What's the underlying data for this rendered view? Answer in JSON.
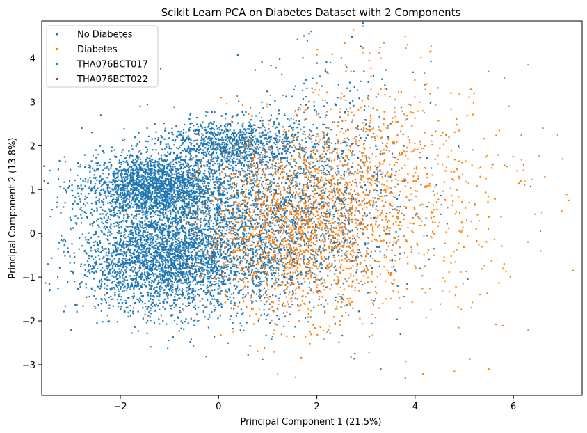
{
  "chart_data": {
    "type": "scatter",
    "title": "Scikit Learn PCA on Diabetes Dataset with 2 Components",
    "xlabel": "Principal Component 1 (21.5%)",
    "ylabel": "Principal Component 2 (13.8%)",
    "xlim": [
      -3.6,
      7.4
    ],
    "ylim": [
      -3.7,
      4.85
    ],
    "xticks": [
      -2,
      0,
      2,
      4,
      6
    ],
    "yticks": [
      -3,
      -2,
      -1,
      0,
      1,
      2,
      3,
      4
    ],
    "grid": false,
    "legend_position": "upper-left",
    "series": [
      {
        "name": "No Diabetes",
        "color": "#1f77b4",
        "clusters": [
          {
            "x_mean": -1.3,
            "x_sd": 0.75,
            "y_mean": 1.05,
            "y_sd": 0.38,
            "count": 2200
          },
          {
            "x_mean": -1.1,
            "x_sd": 0.85,
            "y_mean": -0.6,
            "y_sd": 0.6,
            "count": 2800
          },
          {
            "x_mean": 0.2,
            "x_sd": 0.7,
            "y_mean": 2.05,
            "y_sd": 0.28,
            "count": 900
          },
          {
            "x_mean": 0.8,
            "x_sd": 1.0,
            "y_mean": 0.2,
            "y_sd": 1.0,
            "count": 1800
          },
          {
            "x_mean": 2.2,
            "x_sd": 0.9,
            "y_mean": 1.2,
            "y_sd": 1.3,
            "count": 700
          }
        ],
        "notable_points": [
          {
            "x": -3.2,
            "y": -0.05
          },
          {
            "x": -2.4,
            "y": 2.7
          },
          {
            "x": -1.6,
            "y": 2.9
          },
          {
            "x": 2.5,
            "y": 4.0
          },
          {
            "x": 3.3,
            "y": -3.1
          },
          {
            "x": 6.35,
            "y": 1.07
          },
          {
            "x": 4.2,
            "y": 3.4
          },
          {
            "x": 3.7,
            "y": -2.3
          }
        ]
      },
      {
        "name": "Diabetes",
        "color": "#ff7f0e",
        "clusters": [
          {
            "x_mean": 1.5,
            "x_sd": 0.9,
            "y_mean": 0.1,
            "y_sd": 1.0,
            "count": 1500
          },
          {
            "x_mean": 3.0,
            "x_sd": 0.9,
            "y_mean": 1.0,
            "y_sd": 1.3,
            "count": 700
          },
          {
            "x_mean": 4.5,
            "x_sd": 1.0,
            "y_mean": 0.9,
            "y_sd": 1.5,
            "count": 250
          }
        ],
        "notable_points": [
          {
            "x": 3.8,
            "y": 4.5
          },
          {
            "x": 4.3,
            "y": 4.15
          },
          {
            "x": 7.0,
            "y": 1.7
          },
          {
            "x": 6.9,
            "y": 2.25
          },
          {
            "x": 6.6,
            "y": 2.4
          },
          {
            "x": 6.3,
            "y": 3.85
          },
          {
            "x": 3.8,
            "y": -3.3
          },
          {
            "x": 4.8,
            "y": -3.15
          },
          {
            "x": 5.5,
            "y": -3.1
          },
          {
            "x": 6.3,
            "y": -2.2
          },
          {
            "x": 6.55,
            "y": 0.05
          },
          {
            "x": 6.55,
            "y": -0.4
          },
          {
            "x": 5.2,
            "y": 3.2
          },
          {
            "x": 0.05,
            "y": 3.1
          },
          {
            "x": 3.3,
            "y": 4.0
          }
        ]
      },
      {
        "name": "THA076BCT017",
        "color": "#2ca02c",
        "points": []
      },
      {
        "name": "THA076BCT022",
        "color": "#d62728",
        "points": []
      }
    ]
  }
}
